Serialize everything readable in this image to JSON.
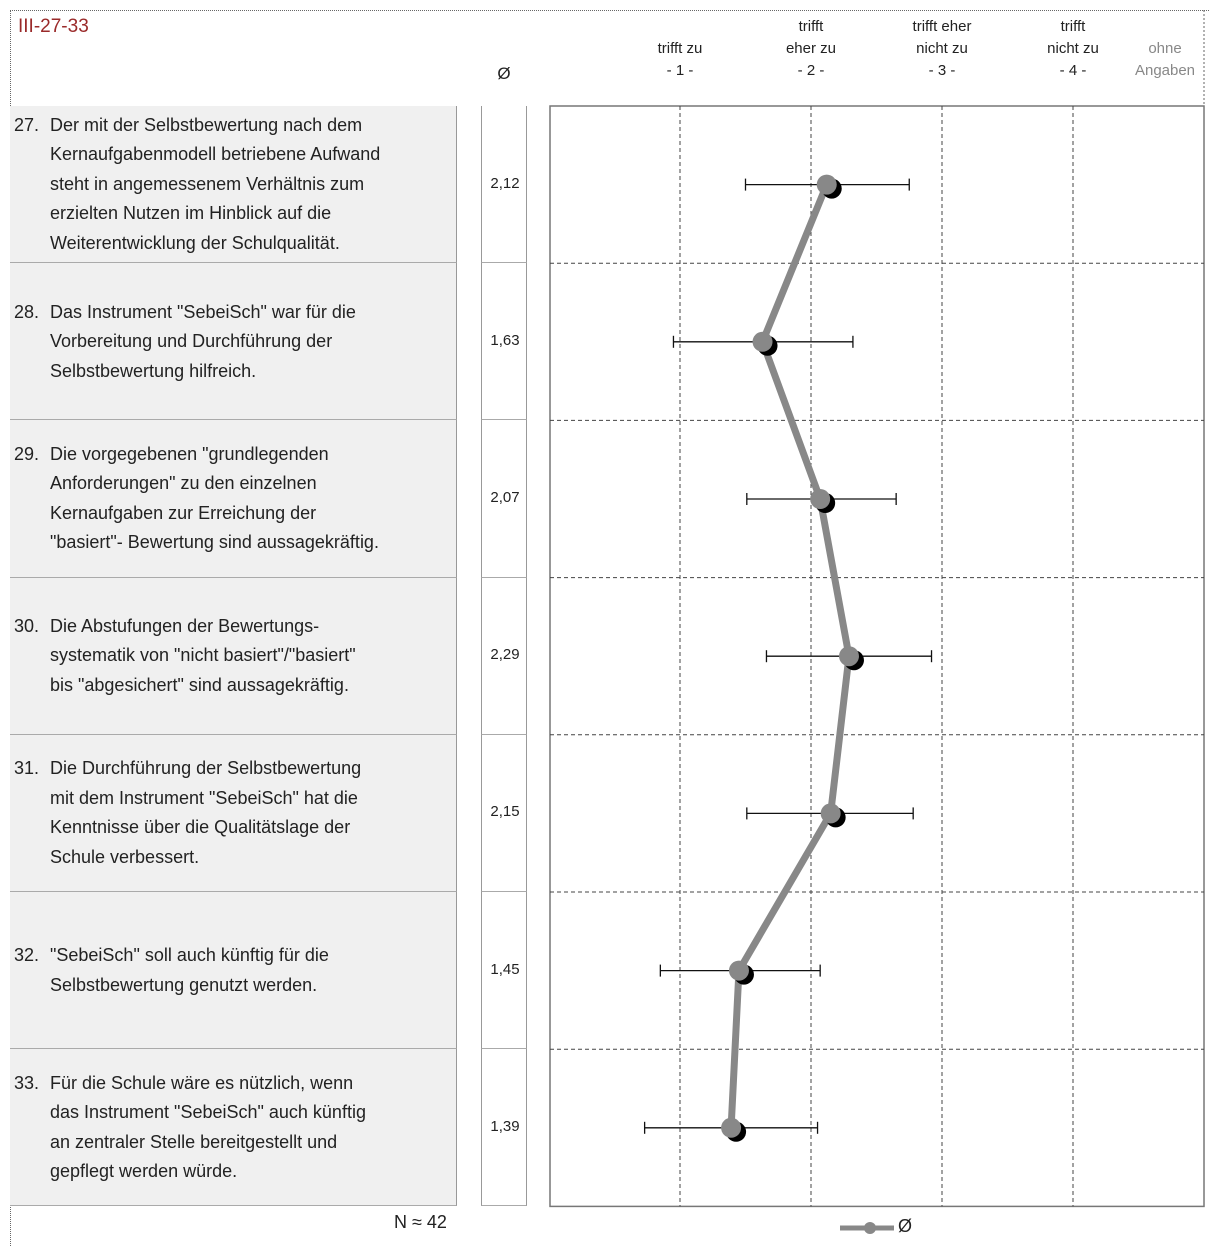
{
  "code_label": "III-27-33",
  "avg_symbol": "Ø",
  "n_label": "N ≈ 42",
  "legend_label": "Ø",
  "columns": [
    {
      "line1": "",
      "line2": "trifft zu",
      "line3": "- 1 -"
    },
    {
      "line1": "trifft",
      "line2": "eher zu",
      "line3": "- 2 -"
    },
    {
      "line1": "trifft eher",
      "line2": "nicht zu",
      "line3": "- 3 -"
    },
    {
      "line1": "trifft",
      "line2": "nicht zu",
      "line3": "- 4 -"
    },
    {
      "line1": "",
      "line2": "ohne",
      "line3": "Angaben"
    }
  ],
  "questions": [
    {
      "num": "27.",
      "lines": [
        "Der mit der Selbstbewertung nach dem",
        "Kernaufgabenmodell betriebene Aufwand",
        "steht in angemessenem Verhältnis zum",
        "erzielten Nutzen im Hinblick auf die",
        "Weiterentwicklung der Schulqualität."
      ],
      "mean_text": "2,12"
    },
    {
      "num": "28.",
      "lines": [
        "Das Instrument \"SebeiSch\" war für die",
        "Vorbereitung und Durchführung der",
        "Selbstbewertung hilfreich."
      ],
      "mean_text": "1,63"
    },
    {
      "num": "29.",
      "lines": [
        "Die vorgegebenen \"grundlegenden",
        "Anforderungen\" zu den einzelnen",
        "Kernaufgaben zur Erreichung der",
        "\"basiert\"- Bewertung sind aussagekräftig."
      ],
      "mean_text": "2,07"
    },
    {
      "num": "30.",
      "lines": [
        "Die Abstufungen der Bewertungs-",
        "systematik von \"nicht basiert\"/\"basiert\"",
        "bis \"abgesichert\" sind aussagekräftig."
      ],
      "mean_text": "2,29"
    },
    {
      "num": "31.",
      "lines": [
        "Die Durchführung der Selbstbewertung",
        "mit dem Instrument \"SebeiSch\" hat die",
        "Kenntnisse über die Qualitätslage der",
        "Schule verbessert."
      ],
      "mean_text": "2,15"
    },
    {
      "num": "32.",
      "lines": [
        "\"SebeiSch\" soll auch künftig für die",
        "Selbstbewertung genutzt werden."
      ],
      "mean_text": "1,45"
    },
    {
      "num": "33.",
      "lines": [
        "Für die Schule wäre es nützlich, wenn",
        "das Instrument \"SebeiSch\" auch künftig",
        "an zentraler Stelle bereitgestellt und",
        "gepflegt werden würde."
      ],
      "mean_text": "1,39"
    }
  ],
  "chart_data": {
    "type": "line",
    "orientation": "horizontal-profile",
    "series": [
      {
        "name": "Ø",
        "values": [
          2.12,
          1.63,
          2.07,
          2.29,
          2.15,
          1.45,
          1.39
        ],
        "color": "#888888"
      }
    ],
    "error_bars": [
      [
        1.5,
        2.75
      ],
      [
        0.95,
        2.32
      ],
      [
        1.51,
        2.65
      ],
      [
        1.66,
        2.92
      ],
      [
        1.51,
        2.78
      ],
      [
        0.85,
        2.07
      ],
      [
        0.73,
        2.05
      ]
    ],
    "categories": [
      "27.",
      "28.",
      "29.",
      "30.",
      "31.",
      "32.",
      "33."
    ],
    "xlim": [
      0,
      5
    ],
    "grid": true,
    "legend": "bottom-center"
  }
}
